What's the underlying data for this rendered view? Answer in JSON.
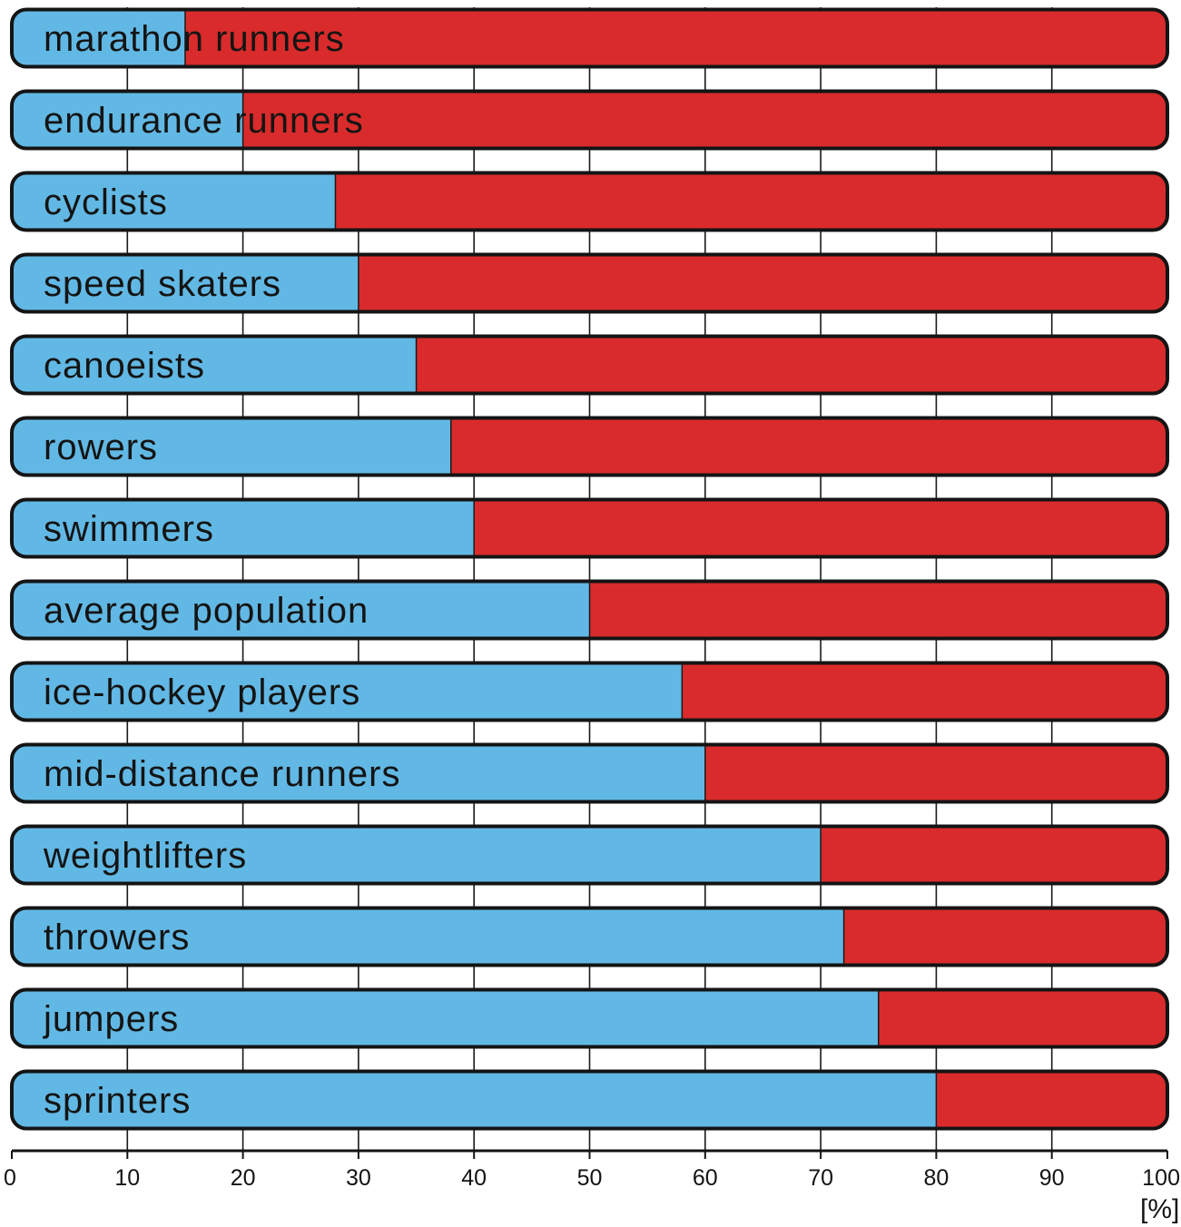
{
  "chart_data": {
    "type": "bar",
    "orientation": "horizontal",
    "stacked": true,
    "categories": [
      "marathon runners",
      "endurance runners",
      "cyclists",
      "speed skaters",
      "canoeists",
      "rowers",
      "swimmers",
      "average population",
      "ice-hockey players",
      "mid-distance runners",
      "weightlifters",
      "throwers",
      "jumpers",
      "sprinters"
    ],
    "series": [
      {
        "color": "#62b8e4",
        "values": [
          15,
          20,
          28,
          30,
          35,
          38,
          40,
          50,
          58,
          60,
          70,
          72,
          75,
          80
        ]
      },
      {
        "color": "#d92b2b",
        "values": [
          85,
          80,
          72,
          70,
          65,
          62,
          60,
          50,
          42,
          40,
          30,
          28,
          25,
          20
        ]
      }
    ],
    "xlim": [
      0,
      100
    ],
    "xticks": [
      "0",
      "10",
      "20",
      "30",
      "40",
      "50",
      "60",
      "70",
      "80",
      "90",
      "100"
    ],
    "xlabel": "[%]",
    "grid": true,
    "title": "",
    "ylabel": ""
  }
}
